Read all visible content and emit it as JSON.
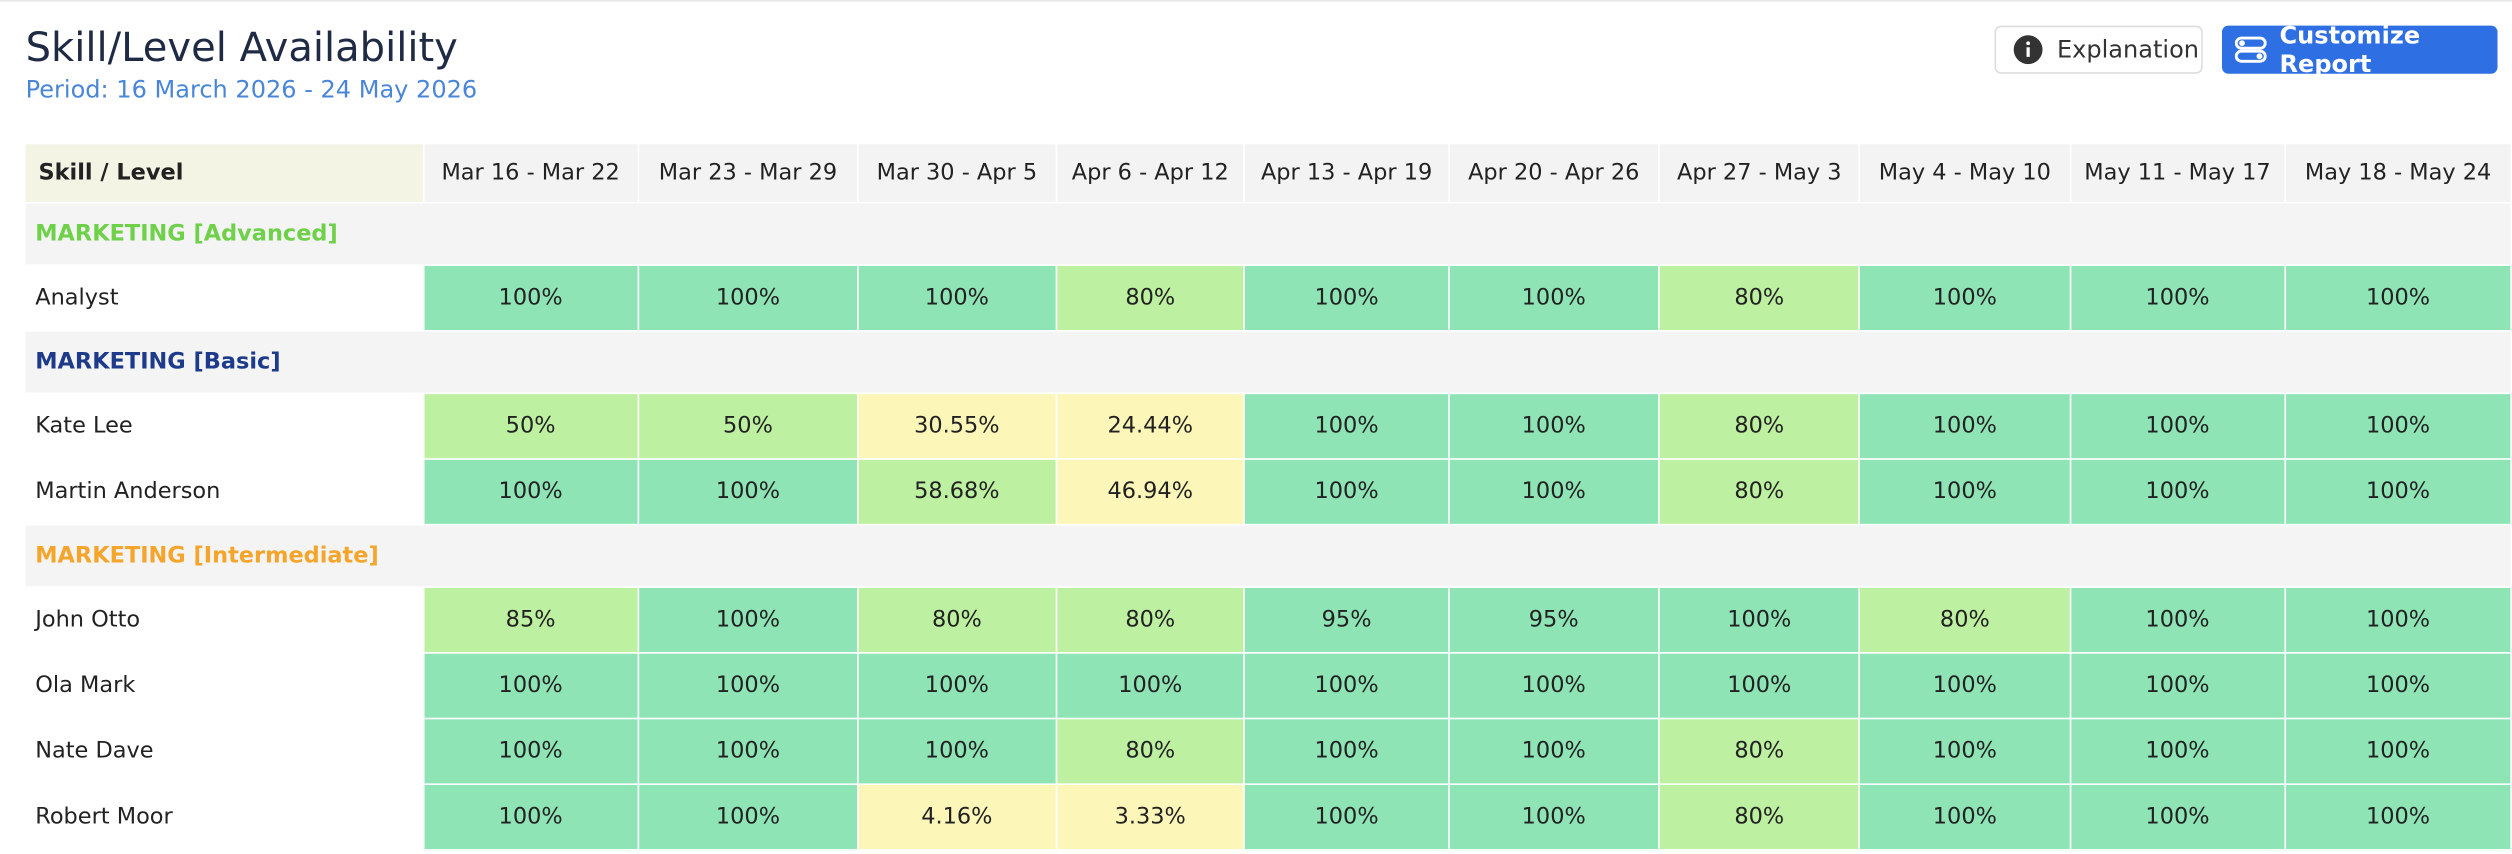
{
  "header": {
    "title": "Skill/Level Availability",
    "period": "Period: 16 March 2026 - 24 May 2026",
    "buttons": [
      "Explanation",
      "Customize Report"
    ]
  },
  "table": {
    "columns": [
      "Skill / Level",
      "Mar 16 - Mar 22",
      "Mar 23 - Mar 29",
      "Mar 30 - Apr 5",
      "Apr 6 - Apr 12",
      "Apr 13 - Apr 19",
      "Apr 20 - Apr 26",
      "Apr 27 - May 3",
      "May 4 - May 10",
      "May 11 - May 17",
      "May 18 - May 24"
    ],
    "groups": [
      {
        "name": "MARKETING [Advanced]",
        "color": "#6fd04a",
        "rows": [
          {
            "name": "Analyst",
            "cells": [
              "100%",
              "100%",
              "100%",
              "80%",
              "100%",
              "100%",
              "80%",
              "100%",
              "100%",
              "100%"
            ]
          }
        ]
      },
      {
        "name": "MARKETING [Basic]",
        "color": "#1e3a8a",
        "rows": [
          {
            "name": "Kate Lee",
            "cells": [
              "50%",
              "50%",
              "30.55%",
              "24.44%",
              "100%",
              "100%",
              "80%",
              "100%",
              "100%",
              "100%"
            ]
          },
          {
            "name": "Martin Anderson",
            "cells": [
              "100%",
              "100%",
              "58.68%",
              "46.94%",
              "100%",
              "100%",
              "80%",
              "100%",
              "100%",
              "100%"
            ]
          }
        ]
      },
      {
        "name": "MARKETING [Intermediate]",
        "color": "#f5a52b",
        "rows": [
          {
            "name": "John Otto",
            "cells": [
              "85%",
              "100%",
              "80%",
              "80%",
              "95%",
              "95%",
              "100%",
              "80%",
              "100%",
              "100%"
            ]
          },
          {
            "name": "Ola Mark",
            "cells": [
              "100%",
              "100%",
              "100%",
              "100%",
              "100%",
              "100%",
              "100%",
              "100%",
              "100%",
              "100%"
            ]
          },
          {
            "name": "Nate Dave",
            "cells": [
              "100%",
              "100%",
              "100%",
              "80%",
              "100%",
              "100%",
              "80%",
              "100%",
              "100%",
              "100%"
            ]
          },
          {
            "name": "Robert Moor",
            "cells": [
              "100%",
              "100%",
              "4.16%",
              "3.33%",
              "100%",
              "100%",
              "80%",
              "100%",
              "100%",
              "100%"
            ]
          }
        ]
      }
    ]
  }
}
